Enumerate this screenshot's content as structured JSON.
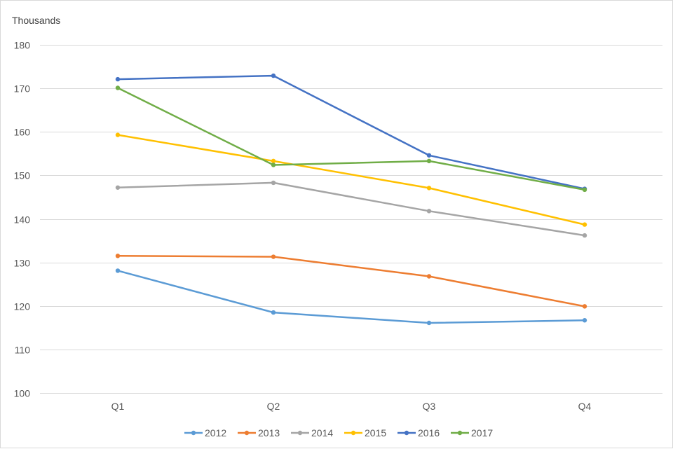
{
  "chart_data": {
    "type": "line",
    "ylabel": "Thousands",
    "categories": [
      "Q1",
      "Q2",
      "Q3",
      "Q4"
    ],
    "ylim": [
      100,
      180
    ],
    "yticks": [
      100,
      110,
      120,
      130,
      140,
      150,
      160,
      170,
      180
    ],
    "grid": true,
    "legend": "bottom",
    "series": [
      {
        "name": "2012",
        "color": "#5B9BD5",
        "values": [
          128.1,
          118.5,
          116.1,
          116.7
        ]
      },
      {
        "name": "2013",
        "color": "#ED7D31",
        "values": [
          131.5,
          131.3,
          126.8,
          119.9
        ]
      },
      {
        "name": "2014",
        "color": "#A5A5A5",
        "values": [
          147.2,
          148.3,
          141.8,
          136.2
        ]
      },
      {
        "name": "2015",
        "color": "#FFC000",
        "values": [
          159.3,
          153.3,
          147.1,
          138.7
        ]
      },
      {
        "name": "2016",
        "color": "#4472C4",
        "values": [
          172.1,
          172.9,
          154.6,
          146.9
        ]
      },
      {
        "name": "2017",
        "color": "#70AD47",
        "values": [
          170.1,
          152.4,
          153.3,
          146.7
        ]
      }
    ]
  }
}
